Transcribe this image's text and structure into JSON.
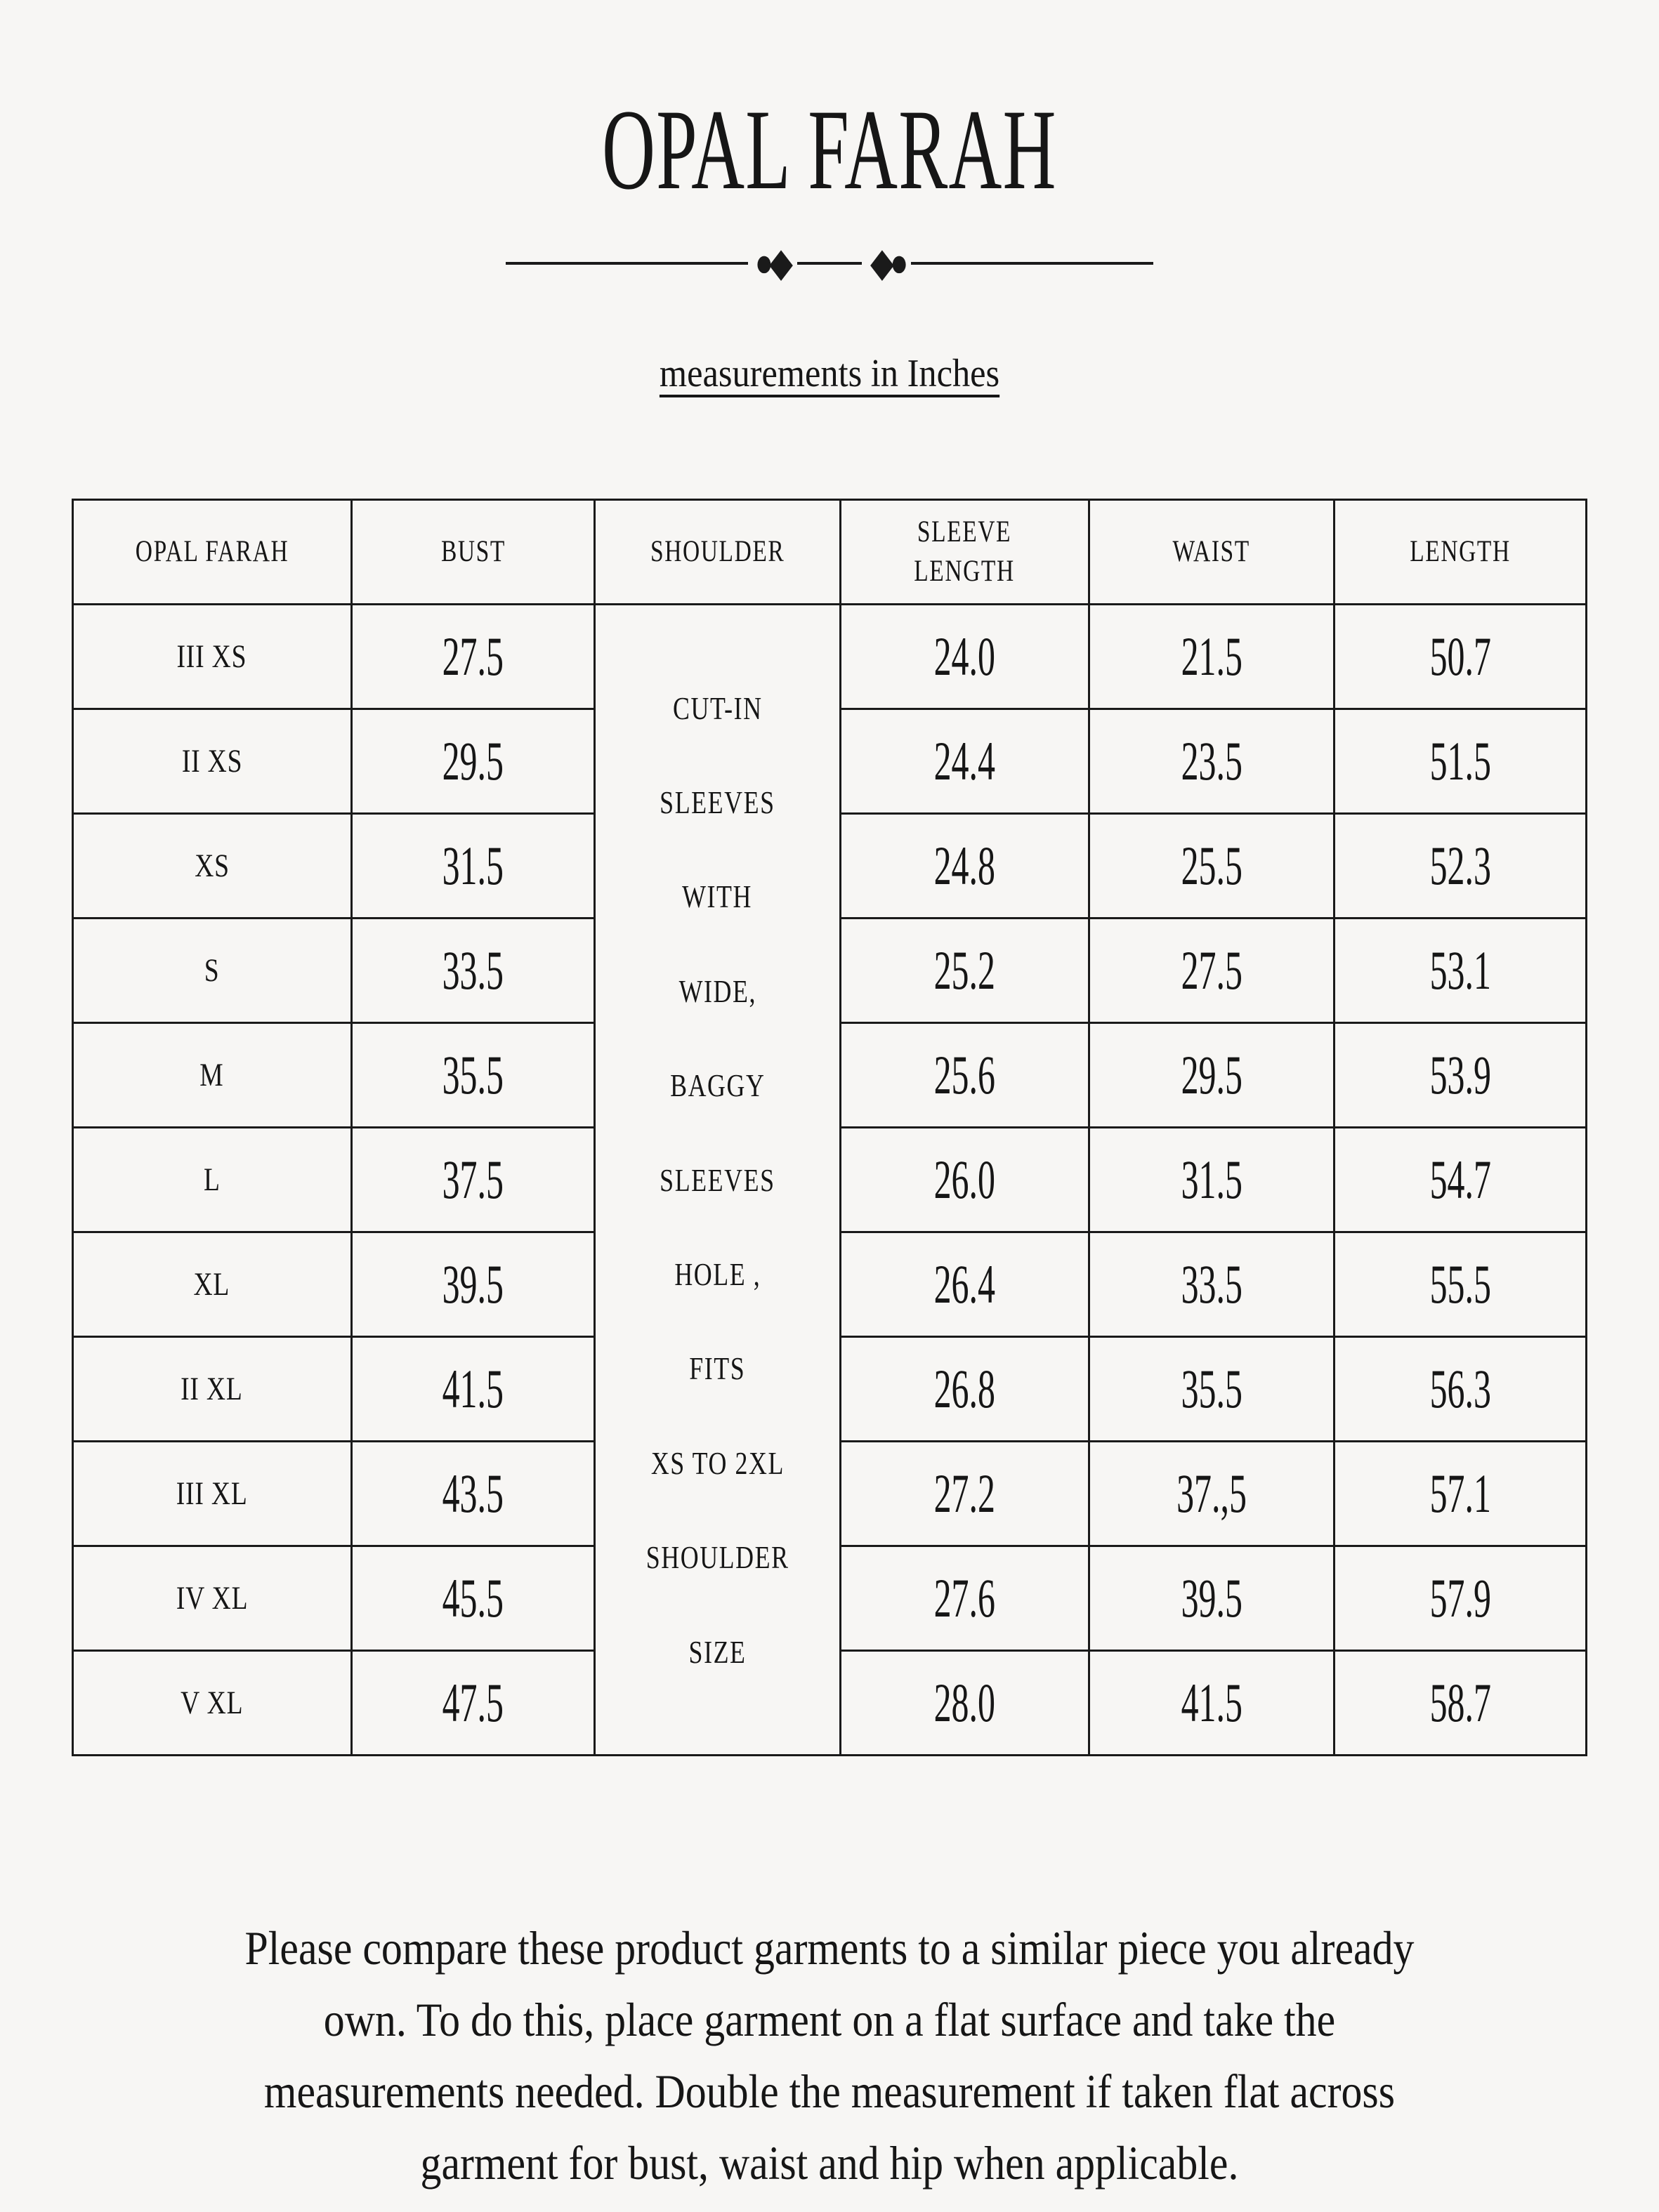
{
  "page": {
    "title": "OPAL FARAH",
    "subtitle": "measurements in Inches"
  },
  "divider": {
    "left_ornament": "●◆",
    "right_ornament": "◆●"
  },
  "table": {
    "headers": [
      "OPAL FARAH",
      "BUST",
      "SHOULDER",
      "SLEEVE\nLENGTH",
      "WAIST",
      "LENGTH"
    ],
    "shoulder_note_lines": [
      "CUT-IN",
      "SLEEVES",
      "WITH",
      "WIDE,",
      "BAGGY",
      "SLEEVES",
      "HOLE ,",
      "FITS",
      "XS TO 2XL",
      "SHOULDER",
      "SIZE"
    ],
    "rows": [
      {
        "size": "III XS",
        "bust": "27.5",
        "sleeve": "24.0",
        "waist": "21.5",
        "length": "50.7"
      },
      {
        "size": "II XS",
        "bust": "29.5",
        "sleeve": "24.4",
        "waist": "23.5",
        "length": "51.5"
      },
      {
        "size": "XS",
        "bust": "31.5",
        "sleeve": "24.8",
        "waist": "25.5",
        "length": "52.3"
      },
      {
        "size": "S",
        "bust": "33.5",
        "sleeve": "25.2",
        "waist": "27.5",
        "length": "53.1"
      },
      {
        "size": "M",
        "bust": "35.5",
        "sleeve": "25.6",
        "waist": "29.5",
        "length": "53.9"
      },
      {
        "size": "L",
        "bust": "37.5",
        "sleeve": "26.0",
        "waist": "31.5",
        "length": "54.7"
      },
      {
        "size": "XL",
        "bust": "39.5",
        "sleeve": "26.4",
        "waist": "33.5",
        "length": "55.5"
      },
      {
        "size": "II XL",
        "bust": "41.5",
        "sleeve": "26.8",
        "waist": "35.5",
        "length": "56.3"
      },
      {
        "size": "III XL",
        "bust": "43.5",
        "sleeve": "27.2",
        "waist": "37.,5",
        "length": "57.1"
      },
      {
        "size": "IV XL",
        "bust": "45.5",
        "sleeve": "27.6",
        "waist": "39.5",
        "length": "57.9"
      },
      {
        "size": "V XL",
        "bust": "47.5",
        "sleeve": "28.0",
        "waist": "41.5",
        "length": "58.7"
      }
    ]
  },
  "footer": {
    "note": "Please compare these product garments to a similar piece you already\nown.  To do this, place garment on a flat surface and take the\nmeasurements needed. Double the measurement if taken flat across\ngarment for bust, waist and hip when applicable."
  },
  "colors": {
    "background": "#f7f6f4",
    "text": "#161616",
    "border": "#1a1a1a"
  }
}
